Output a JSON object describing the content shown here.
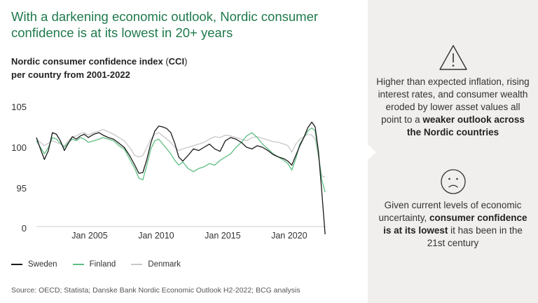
{
  "title": "With a darkening economic outlook, Nordic consumer confidence is at its lowest in 20+ years",
  "subtitle": {
    "line1_bold": "Nordic consumer confidence index",
    "line1_paren_open": " (",
    "line1_abbr": "CCI",
    "line1_paren_close": ")",
    "line2": "per country from 2001-2022"
  },
  "chart_data": {
    "type": "line",
    "title": "Nordic consumer confidence index (CCI) per country from 2001-2022",
    "xlabel": "",
    "ylabel": "",
    "x_range": [
      2001.0,
      2022.8
    ],
    "y_axis": {
      "ticks": [
        105,
        100,
        95,
        0
      ],
      "note": "axis break between 95 and 0"
    },
    "x_ticks": [
      {
        "label": "Jan 2005",
        "value": 2005
      },
      {
        "label": "Jan 2010",
        "value": 2010
      },
      {
        "label": "Jan 2015",
        "value": 2015
      },
      {
        "label": "Jan 2020",
        "value": 2020
      }
    ],
    "series": [
      {
        "name": "Sweden",
        "color": "#1a1a1a",
        "points": [
          [
            2001.0,
            101.2
          ],
          [
            2001.3,
            99.8
          ],
          [
            2001.6,
            98.5
          ],
          [
            2001.9,
            99.6
          ],
          [
            2002.2,
            101.8
          ],
          [
            2002.5,
            101.6
          ],
          [
            2002.8,
            100.8
          ],
          [
            2003.1,
            99.6
          ],
          [
            2003.4,
            100.5
          ],
          [
            2003.7,
            101.3
          ],
          [
            2004.0,
            101.0
          ],
          [
            2004.3,
            101.4
          ],
          [
            2004.6,
            101.6
          ],
          [
            2004.9,
            101.2
          ],
          [
            2005.3,
            101.6
          ],
          [
            2005.7,
            101.8
          ],
          [
            2006.0,
            101.5
          ],
          [
            2006.4,
            101.2
          ],
          [
            2006.8,
            101.0
          ],
          [
            2007.2,
            100.5
          ],
          [
            2007.6,
            100.0
          ],
          [
            2008.0,
            99.0
          ],
          [
            2008.4,
            97.8
          ],
          [
            2008.7,
            96.8
          ],
          [
            2009.0,
            96.9
          ],
          [
            2009.3,
            98.5
          ],
          [
            2009.6,
            100.5
          ],
          [
            2009.9,
            102.0
          ],
          [
            2010.2,
            102.6
          ],
          [
            2010.5,
            102.5
          ],
          [
            2010.8,
            102.3
          ],
          [
            2011.1,
            101.8
          ],
          [
            2011.4,
            100.5
          ],
          [
            2011.7,
            98.8
          ],
          [
            2012.0,
            98.3
          ],
          [
            2012.4,
            99.0
          ],
          [
            2012.8,
            99.8
          ],
          [
            2013.2,
            99.6
          ],
          [
            2013.6,
            100.0
          ],
          [
            2014.0,
            100.4
          ],
          [
            2014.4,
            99.8
          ],
          [
            2014.8,
            99.5
          ],
          [
            2015.2,
            100.8
          ],
          [
            2015.6,
            101.2
          ],
          [
            2016.0,
            101.0
          ],
          [
            2016.4,
            100.6
          ],
          [
            2016.8,
            100.0
          ],
          [
            2017.2,
            99.8
          ],
          [
            2017.6,
            100.2
          ],
          [
            2018.0,
            100.0
          ],
          [
            2018.4,
            99.6
          ],
          [
            2018.8,
            99.1
          ],
          [
            2019.2,
            98.8
          ],
          [
            2019.6,
            98.6
          ],
          [
            2019.9,
            98.3
          ],
          [
            2020.2,
            97.8
          ],
          [
            2020.5,
            99.0
          ],
          [
            2020.8,
            100.2
          ],
          [
            2021.1,
            101.2
          ],
          [
            2021.4,
            102.4
          ],
          [
            2021.7,
            103.1
          ],
          [
            2021.95,
            102.5
          ],
          [
            2022.2,
            99.5
          ],
          [
            2022.45,
            94.5
          ],
          [
            2022.7,
            89.3
          ]
        ]
      },
      {
        "name": "Finland",
        "color": "#5ebf84",
        "points": [
          [
            2001.0,
            100.8
          ],
          [
            2001.3,
            100.0
          ],
          [
            2001.6,
            99.2
          ],
          [
            2001.9,
            100.0
          ],
          [
            2002.2,
            101.2
          ],
          [
            2002.5,
            101.0
          ],
          [
            2002.8,
            100.5
          ],
          [
            2003.1,
            100.0
          ],
          [
            2003.4,
            100.6
          ],
          [
            2003.7,
            101.0
          ],
          [
            2004.0,
            100.8
          ],
          [
            2004.3,
            101.2
          ],
          [
            2004.6,
            101.0
          ],
          [
            2004.9,
            100.6
          ],
          [
            2005.3,
            100.8
          ],
          [
            2005.7,
            101.0
          ],
          [
            2006.0,
            101.2
          ],
          [
            2006.4,
            101.0
          ],
          [
            2006.8,
            100.8
          ],
          [
            2007.2,
            100.2
          ],
          [
            2007.6,
            99.8
          ],
          [
            2008.0,
            98.6
          ],
          [
            2008.4,
            97.4
          ],
          [
            2008.7,
            96.2
          ],
          [
            2009.0,
            96.0
          ],
          [
            2009.3,
            97.8
          ],
          [
            2009.6,
            99.8
          ],
          [
            2009.9,
            100.8
          ],
          [
            2010.2,
            101.0
          ],
          [
            2010.5,
            100.4
          ],
          [
            2010.8,
            99.8
          ],
          [
            2011.1,
            99.2
          ],
          [
            2011.4,
            98.4
          ],
          [
            2011.7,
            97.8
          ],
          [
            2012.0,
            98.2
          ],
          [
            2012.4,
            97.4
          ],
          [
            2012.8,
            97.0
          ],
          [
            2013.2,
            97.4
          ],
          [
            2013.6,
            97.6
          ],
          [
            2014.0,
            98.0
          ],
          [
            2014.4,
            97.8
          ],
          [
            2014.8,
            98.4
          ],
          [
            2015.2,
            98.8
          ],
          [
            2015.6,
            99.2
          ],
          [
            2016.0,
            100.0
          ],
          [
            2016.4,
            100.6
          ],
          [
            2016.8,
            101.4
          ],
          [
            2017.2,
            101.8
          ],
          [
            2017.6,
            101.2
          ],
          [
            2018.0,
            100.4
          ],
          [
            2018.4,
            99.8
          ],
          [
            2018.8,
            99.2
          ],
          [
            2019.2,
            98.8
          ],
          [
            2019.6,
            98.4
          ],
          [
            2019.9,
            98.0
          ],
          [
            2020.2,
            97.2
          ],
          [
            2020.5,
            98.6
          ],
          [
            2020.8,
            100.4
          ],
          [
            2021.1,
            101.2
          ],
          [
            2021.4,
            102.0
          ],
          [
            2021.7,
            102.4
          ],
          [
            2021.95,
            102.0
          ],
          [
            2022.2,
            99.0
          ],
          [
            2022.45,
            96.0
          ],
          [
            2022.7,
            94.5
          ]
        ]
      },
      {
        "name": "Denmark",
        "color": "#c8c8c8",
        "points": [
          [
            2001.0,
            101.0
          ],
          [
            2001.3,
            100.6
          ],
          [
            2001.6,
            100.2
          ],
          [
            2001.9,
            100.5
          ],
          [
            2002.2,
            100.8
          ],
          [
            2002.5,
            100.6
          ],
          [
            2002.8,
            100.4
          ],
          [
            2003.1,
            100.2
          ],
          [
            2003.4,
            100.8
          ],
          [
            2003.7,
            101.3
          ],
          [
            2004.0,
            101.4
          ],
          [
            2004.3,
            101.7
          ],
          [
            2004.6,
            101.8
          ],
          [
            2004.9,
            101.5
          ],
          [
            2005.3,
            101.8
          ],
          [
            2005.7,
            102.0
          ],
          [
            2006.0,
            102.2
          ],
          [
            2006.4,
            101.9
          ],
          [
            2006.8,
            101.6
          ],
          [
            2007.2,
            101.2
          ],
          [
            2007.6,
            100.8
          ],
          [
            2008.0,
            100.0
          ],
          [
            2008.4,
            99.0
          ],
          [
            2008.7,
            98.8
          ],
          [
            2009.0,
            99.0
          ],
          [
            2009.3,
            100.0
          ],
          [
            2009.6,
            101.0
          ],
          [
            2009.9,
            101.6
          ],
          [
            2010.2,
            101.8
          ],
          [
            2010.5,
            101.4
          ],
          [
            2010.8,
            101.0
          ],
          [
            2011.1,
            100.6
          ],
          [
            2011.4,
            100.0
          ],
          [
            2011.7,
            99.6
          ],
          [
            2012.0,
            99.8
          ],
          [
            2012.4,
            100.0
          ],
          [
            2012.8,
            100.2
          ],
          [
            2013.2,
            100.4
          ],
          [
            2013.6,
            100.6
          ],
          [
            2014.0,
            101.0
          ],
          [
            2014.4,
            101.3
          ],
          [
            2014.8,
            101.2
          ],
          [
            2015.2,
            101.5
          ],
          [
            2015.6,
            101.4
          ],
          [
            2016.0,
            101.2
          ],
          [
            2016.4,
            101.0
          ],
          [
            2016.8,
            100.8
          ],
          [
            2017.2,
            101.2
          ],
          [
            2017.6,
            101.3
          ],
          [
            2018.0,
            101.1
          ],
          [
            2018.4,
            100.9
          ],
          [
            2018.8,
            100.7
          ],
          [
            2019.2,
            100.6
          ],
          [
            2019.6,
            100.4
          ],
          [
            2019.9,
            100.2
          ],
          [
            2020.2,
            99.4
          ],
          [
            2020.5,
            100.4
          ],
          [
            2020.8,
            101.0
          ],
          [
            2021.1,
            101.3
          ],
          [
            2021.4,
            101.6
          ],
          [
            2021.7,
            101.5
          ],
          [
            2021.95,
            101.0
          ],
          [
            2022.2,
            98.8
          ],
          [
            2022.45,
            96.5
          ],
          [
            2022.7,
            96.3
          ]
        ]
      }
    ],
    "legend_position": "bottom-left"
  },
  "legend": {
    "sweden": "Sweden",
    "finland": "Finland",
    "denmark": "Denmark"
  },
  "source": "Source: OECD; Statista; Danske Bank Nordic Economic Outlook H2-2022; BCG analysis",
  "panel": {
    "warning_icon": "warning-triangle-icon",
    "sad_icon": "sad-face-icon",
    "text1_plain": "Higher than expected inflation, rising interest rates, and consumer wealth eroded by lower asset values all point to a ",
    "text1_bold": "weaker outlook across the Nordic countries",
    "text2_plain_start": "Given current levels of economic uncertainty, ",
    "text2_bold": "consumer confidence is at its lowest",
    "text2_plain_end": " it has been in the 21st century"
  },
  "colors": {
    "title_green": "#1f7a4c",
    "panel_bg": "#f1efed",
    "sweden": "#1a1a1a",
    "finland": "#5ebf84",
    "denmark": "#c8c8c8"
  }
}
